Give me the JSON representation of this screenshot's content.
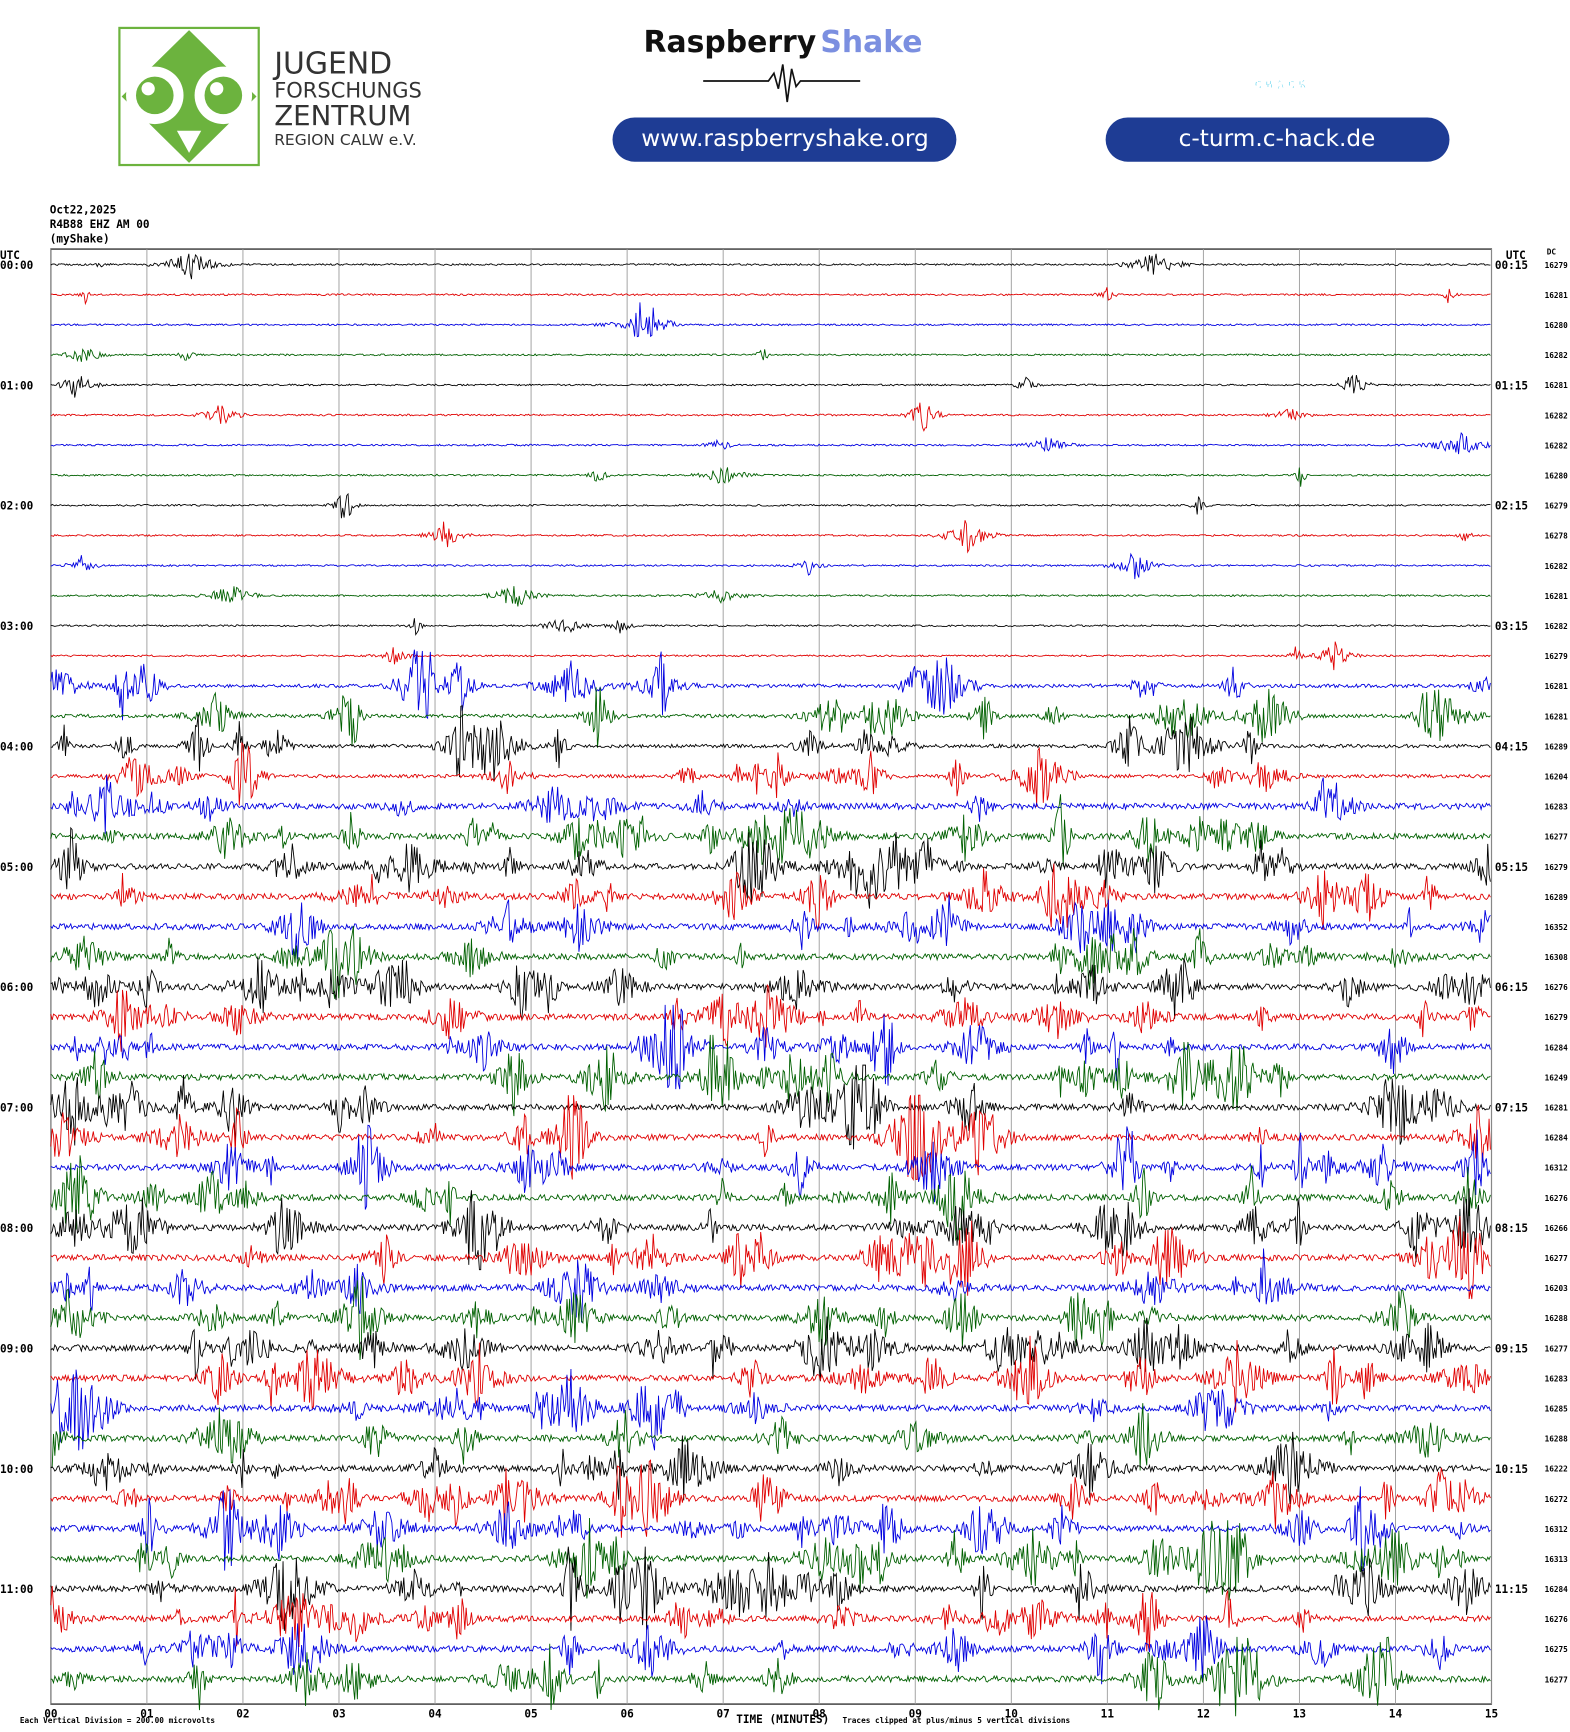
{
  "header": {
    "jfz": [
      "JUGEND",
      "FORSCHUNGS",
      "ZENTRUM",
      "REGION CALW e.V."
    ],
    "rs_brand": "Raspberry",
    "rs_brand2": "Shake",
    "rs_url": "www.raspberryshake.org",
    "chack": "CHACK",
    "chack_url": "c-turm.c-hack.de"
  },
  "plot": {
    "date": "Oct22,2025",
    "station": "R4B88 EHZ AM 00",
    "source": "(myShake)",
    "utc_left": "UTC",
    "utc_right": "UTC",
    "dc": "DC",
    "left_labels": [
      "00:00",
      "01:00",
      "02:00",
      "03:00",
      "04:00",
      "05:00",
      "06:00",
      "07:00",
      "08:00",
      "09:00",
      "10:00",
      "11:00"
    ],
    "right_labels": [
      "00:15",
      "01:15",
      "02:15",
      "03:15",
      "04:15",
      "05:15",
      "06:15",
      "07:15",
      "08:15",
      "09:15",
      "10:15",
      "11:15"
    ],
    "dc_values": [
      16279,
      16281,
      16280,
      16282,
      16281,
      16282,
      16282,
      16280,
      16279,
      16278,
      16282,
      16281,
      16282,
      16279,
      16281,
      16281,
      16289,
      16204,
      16283,
      16277,
      16279,
      16289,
      16352,
      16308,
      16276,
      16279,
      16284,
      16249,
      16281,
      16284,
      16312,
      16276,
      16266,
      16277,
      16203,
      16288,
      16277,
      16283,
      16285,
      16288,
      16222,
      16272,
      16312,
      16313,
      16284,
      16276,
      16275,
      16277
    ],
    "trace_colors": [
      "#000000",
      "#e00000",
      "#0000e0",
      "#006000"
    ],
    "xticks": [
      "00",
      "01",
      "02",
      "03",
      "04",
      "05",
      "06",
      "07",
      "08",
      "09",
      "10",
      "11",
      "12",
      "13",
      "14",
      "15"
    ],
    "xlabel": "TIME (MINUTES)",
    "scale_note": "Each Vertical Division =  200.00 microvolts",
    "clip_note": "Traces clipped at plus/minus 5 vertical divisions"
  }
}
